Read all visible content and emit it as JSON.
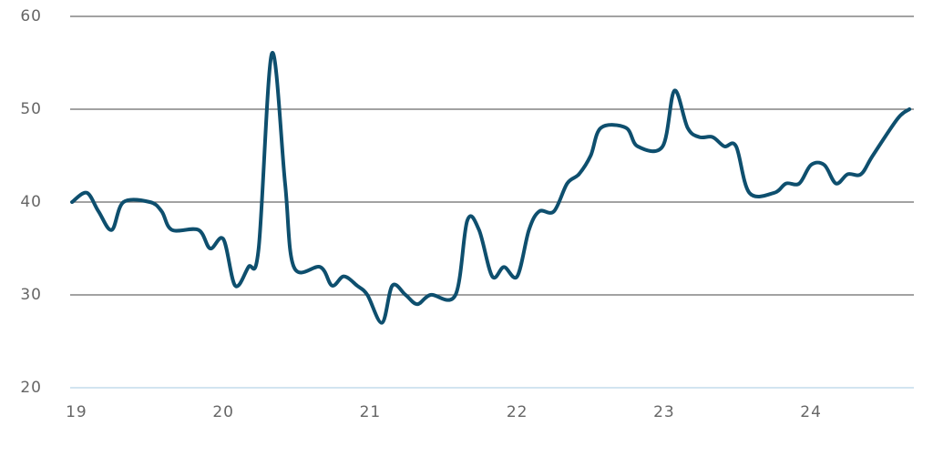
{
  "chart_data": {
    "type": "line",
    "x": [
      18.97,
      19.07,
      19.15,
      19.24,
      19.32,
      19.5,
      19.58,
      19.65,
      19.83,
      19.91,
      20.0,
      20.08,
      20.17,
      20.24,
      20.33,
      20.42,
      20.48,
      20.66,
      20.74,
      20.82,
      20.91,
      20.98,
      21.08,
      21.15,
      21.24,
      21.32,
      21.41,
      21.58,
      21.66,
      21.74,
      21.83,
      21.91,
      22.0,
      22.08,
      22.15,
      22.25,
      22.34,
      22.42,
      22.5,
      22.57,
      22.74,
      22.82,
      22.99,
      23.07,
      23.16,
      23.24,
      23.33,
      23.41,
      23.49,
      23.58,
      23.75,
      23.83,
      23.92,
      24.0,
      24.09,
      24.17,
      24.25,
      24.34,
      24.42,
      24.59,
      24.67
    ],
    "series": [
      {
        "color": "#0e4f6e",
        "values": [
          40,
          41,
          39,
          37,
          40,
          40,
          39,
          37,
          37,
          35,
          36,
          31,
          33,
          35,
          56,
          42,
          33,
          33,
          31,
          32,
          31,
          30,
          27,
          31,
          30,
          29,
          30,
          30,
          38,
          37,
          32,
          33,
          32,
          37,
          39,
          39,
          42,
          43,
          45,
          48,
          48,
          46,
          46,
          52,
          48,
          47,
          47,
          46,
          46,
          41,
          41,
          42,
          42,
          44,
          44,
          42,
          43,
          43,
          45,
          49,
          50
        ]
      }
    ],
    "xlim": [
      18.957,
      24.7
    ],
    "xticks": [
      19,
      20,
      21,
      22,
      23,
      24
    ],
    "ylim": [
      20,
      60
    ],
    "yticks": [
      20,
      30,
      40,
      50,
      60
    ],
    "grid": true
  }
}
